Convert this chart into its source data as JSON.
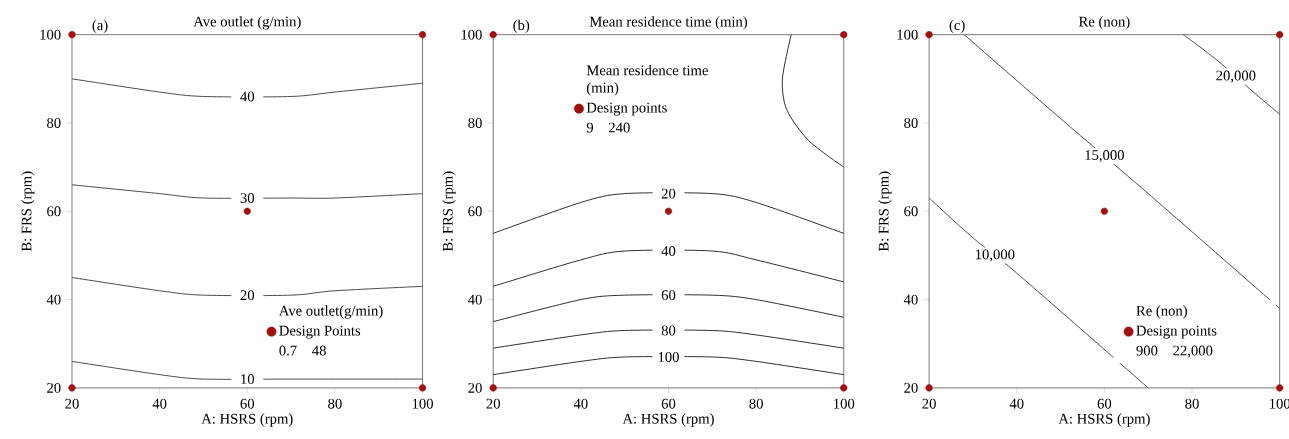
{
  "chart_data": [
    {
      "type": "line",
      "title": "Ave outlet (g/min)",
      "xlabel": "A: HSRS (rpm)",
      "ylabel": "B: FRS (rpm)",
      "annotations": [
        "(a)",
        "0.7",
        "48"
      ],
      "legend": "bottom right",
      "legend_title": "Ave outlet(g/min)",
      "xlim": [
        20,
        100
      ],
      "ylim": [
        20,
        100
      ],
      "xticks": [
        20,
        40,
        60,
        80,
        100
      ],
      "yticks": [
        20,
        40,
        60,
        80,
        100
      ],
      "series": [
        {
          "name": "40",
          "type": "line",
          "color": "#404040",
          "x": [
            20,
            40,
            50,
            70,
            80,
            100
          ],
          "values": [
            90,
            87,
            86,
            86,
            87,
            89
          ]
        },
        {
          "name": "30",
          "type": "line",
          "color": "#404040",
          "x": [
            20,
            40,
            50,
            70,
            80,
            100
          ],
          "values": [
            66,
            64,
            63,
            63,
            63,
            64
          ]
        },
        {
          "name": "20",
          "type": "line",
          "color": "#404040",
          "x": [
            20,
            40,
            50,
            70,
            80,
            100
          ],
          "values": [
            45,
            42,
            41,
            41,
            42,
            43
          ]
        },
        {
          "name": "10",
          "type": "line",
          "color": "#404040",
          "x": [
            20,
            40,
            50,
            70,
            80,
            100
          ],
          "values": [
            26,
            23,
            22,
            22,
            22,
            22
          ]
        },
        {
          "name": "Design Points",
          "type": "scatter",
          "marker": "circle",
          "color": "#a01010",
          "x": [
            20,
            20,
            60,
            100,
            100
          ],
          "values": [
            20,
            100,
            60,
            20,
            100
          ]
        }
      ]
    },
    {
      "type": "line",
      "title": "Mean residence time (min)",
      "xlabel": "A: HSRS (rpm)",
      "ylabel": "B: FRS (rpm)",
      "annotations": [
        "(b)",
        "9",
        "240"
      ],
      "legend": "top",
      "legend_title": "Mean residence time (min)",
      "xlim": [
        20,
        100
      ],
      "ylim": [
        20,
        100
      ],
      "xticks": [
        20,
        40,
        60,
        80,
        100
      ],
      "yticks": [
        20,
        40,
        60,
        80,
        100
      ],
      "series": [
        {
          "type": "line",
          "color": "#202020",
          "x": [
            88,
            86,
            87,
            92,
            100
          ],
          "values": [
            100,
            90,
            83,
            76,
            70
          ]
        },
        {
          "name": "20",
          "type": "line",
          "color": "#202020",
          "x": [
            20,
            40,
            50,
            70,
            80,
            100
          ],
          "values": [
            55,
            62,
            64,
            64,
            62,
            55
          ]
        },
        {
          "name": "40",
          "type": "line",
          "color": "#202020",
          "x": [
            20,
            40,
            50,
            70,
            80,
            100
          ],
          "values": [
            43,
            49,
            51,
            51,
            49,
            44
          ]
        },
        {
          "name": "60",
          "type": "line",
          "color": "#202020",
          "x": [
            20,
            40,
            50,
            70,
            80,
            100
          ],
          "values": [
            35,
            40,
            41,
            41,
            40,
            36
          ]
        },
        {
          "name": "80",
          "type": "line",
          "color": "#202020",
          "x": [
            20,
            40,
            50,
            70,
            80,
            100
          ],
          "values": [
            29,
            32,
            33,
            33,
            32,
            29
          ]
        },
        {
          "name": "100",
          "type": "line",
          "color": "#202020",
          "x": [
            20,
            40,
            50,
            70,
            80,
            100
          ],
          "values": [
            23,
            26,
            27,
            27,
            26,
            23
          ]
        },
        {
          "name": "Design points",
          "type": "scatter",
          "marker": "circle",
          "color": "#a01010",
          "x": [
            20,
            20,
            60,
            100,
            100
          ],
          "values": [
            20,
            100,
            60,
            20,
            100
          ]
        }
      ]
    },
    {
      "type": "line",
      "title": "Re (non)",
      "xlabel": "A: HSRS (rpm)",
      "ylabel": "B: FRS (rpm)",
      "annotations": [
        "(c)",
        "900",
        "22,000"
      ],
      "legend": "bottom right",
      "legend_title": "Re (non)",
      "xlim": [
        20,
        100
      ],
      "ylim": [
        20,
        100
      ],
      "xticks": [
        20,
        40,
        60,
        80,
        100
      ],
      "yticks": [
        20,
        40,
        60,
        80,
        100
      ],
      "series": [
        {
          "name": "20,000",
          "type": "line",
          "color": "#404040",
          "x": [
            78,
            86,
            94,
            100
          ],
          "values": [
            100,
            94,
            87,
            82
          ]
        },
        {
          "name": "15,000",
          "type": "line",
          "color": "#404040",
          "x": [
            28,
            50,
            70,
            100
          ],
          "values": [
            100,
            81,
            64,
            38
          ]
        },
        {
          "name": "10,000",
          "type": "line",
          "color": "#404040",
          "x": [
            20,
            30,
            40,
            70
          ],
          "values": [
            63,
            54,
            46,
            20
          ]
        },
        {
          "name": "Design points",
          "type": "scatter",
          "marker": "circle",
          "color": "#a01010",
          "x": [
            20,
            20,
            60,
            100,
            100
          ],
          "values": [
            20,
            100,
            60,
            20,
            100
          ]
        }
      ]
    }
  ]
}
